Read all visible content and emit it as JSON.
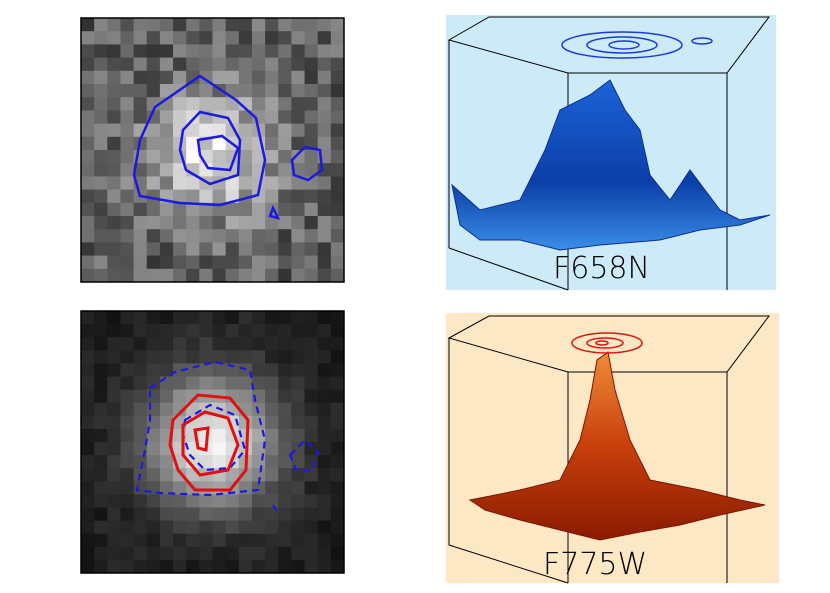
{
  "panels": [
    {
      "label": "F658N"
    },
    {
      "label": "F775W"
    }
  ]
}
